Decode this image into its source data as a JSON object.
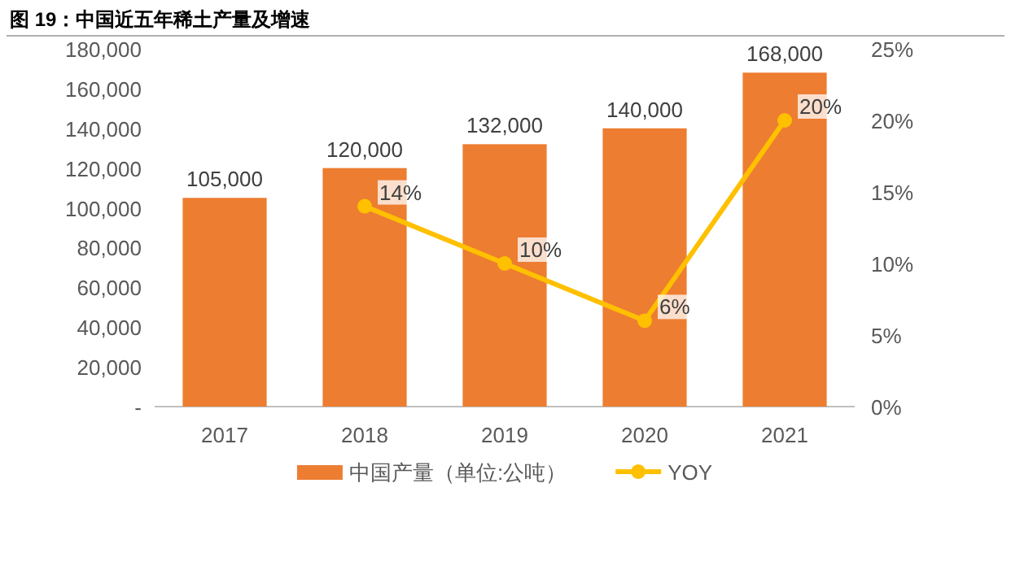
{
  "chart_data": {
    "type": "bar",
    "title": "图 19：中国近五年稀土产量及增速",
    "categories": [
      "2017",
      "2018",
      "2019",
      "2020",
      "2021"
    ],
    "series": [
      {
        "name": "中国产量（单位:公吨）",
        "color": "#ed7d31",
        "values": [
          105000,
          120000,
          132000,
          140000,
          168000
        ],
        "value_labels": [
          "105,000",
          "120,000",
          "132,000",
          "140,000",
          "168,000"
        ]
      },
      {
        "name": "YOY",
        "type": "line",
        "axis": "y2",
        "color": "#ffc000",
        "marker": "circle",
        "values": [
          null,
          14,
          10,
          6,
          20
        ],
        "value_labels": [
          null,
          "14%",
          "10%",
          "6%",
          "20%"
        ]
      }
    ],
    "ylim": [
      0,
      180000
    ],
    "yticks": [
      {
        "value": 0,
        "label": "-"
      },
      {
        "value": 20000,
        "label": "20,000"
      },
      {
        "value": 40000,
        "label": "40,000"
      },
      {
        "value": 60000,
        "label": "60,000"
      },
      {
        "value": 80000,
        "label": "80,000"
      },
      {
        "value": 100000,
        "label": "100,000"
      },
      {
        "value": 120000,
        "label": "120,000"
      },
      {
        "value": 140000,
        "label": "140,000"
      },
      {
        "value": 160000,
        "label": "160,000"
      },
      {
        "value": 180000,
        "label": "180,000"
      }
    ],
    "y2lim": [
      0,
      25
    ],
    "y2ticks": [
      {
        "value": 0,
        "label": "0%"
      },
      {
        "value": 5,
        "label": "5%"
      },
      {
        "value": 10,
        "label": "10%"
      },
      {
        "value": 15,
        "label": "15%"
      },
      {
        "value": 20,
        "label": "20%"
      },
      {
        "value": 25,
        "label": "25%"
      }
    ],
    "grid": false,
    "legend": "bottom"
  }
}
